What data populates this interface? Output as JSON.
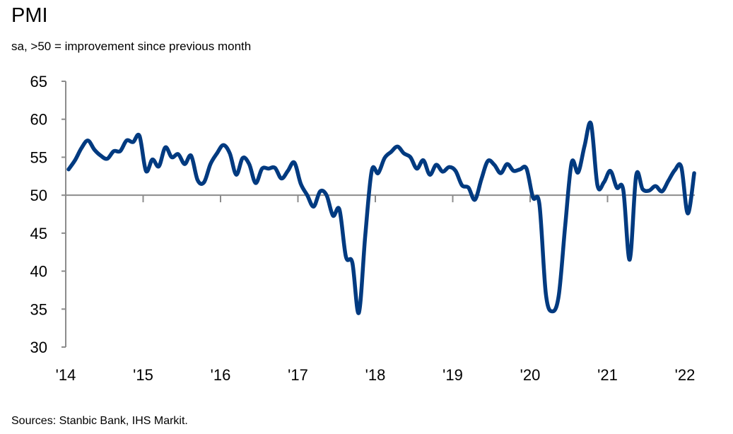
{
  "chart_data": {
    "type": "line",
    "title": "PMI",
    "subtitle": "sa, >50 = improvement since previous month",
    "source": "Sources: Stanbic Bank, IHS Markit.",
    "xlabel": "",
    "ylabel": "",
    "x_start": "2014-01",
    "x_end": "2022-02",
    "frequency": "monthly",
    "ylim": [
      30,
      65
    ],
    "yticks": [
      30,
      35,
      40,
      45,
      50,
      55,
      60,
      65
    ],
    "xtick_labels": [
      "'14",
      "'15",
      "'16",
      "'17",
      "'18",
      "'19",
      "'20",
      "'21",
      "'22"
    ],
    "reference_line": 50,
    "grid": false,
    "line_color": "#003a80",
    "values": [
      53.4,
      54.6,
      56.2,
      57.2,
      56.0,
      55.2,
      54.8,
      55.8,
      55.8,
      57.2,
      57.0,
      57.8,
      53.2,
      54.7,
      53.8,
      56.3,
      55.0,
      55.4,
      54.1,
      55.2,
      52.0,
      51.7,
      54.1,
      55.5,
      56.6,
      55.5,
      52.7,
      54.9,
      54.1,
      51.6,
      53.5,
      53.5,
      53.6,
      52.2,
      53.2,
      54.3,
      51.5,
      50.0,
      48.5,
      50.5,
      50.0,
      47.3,
      48.1,
      41.9,
      41.1,
      34.5,
      44.7,
      53.2,
      52.9,
      54.9,
      55.7,
      56.4,
      55.5,
      55.0,
      53.5,
      54.6,
      52.7,
      54.0,
      53.1,
      53.7,
      53.2,
      51.3,
      51.0,
      49.4,
      52.1,
      54.5,
      54.0,
      52.9,
      54.1,
      53.2,
      53.4,
      53.5,
      49.7,
      48.8,
      37.0,
      34.7,
      36.8,
      46.0,
      54.3,
      53.0,
      56.5,
      59.4,
      51.3,
      51.7,
      53.2,
      51.0,
      50.7,
      41.5,
      52.6,
      50.8,
      50.6,
      51.2,
      50.5,
      51.9,
      53.3,
      53.7,
      47.6,
      52.9
    ]
  }
}
